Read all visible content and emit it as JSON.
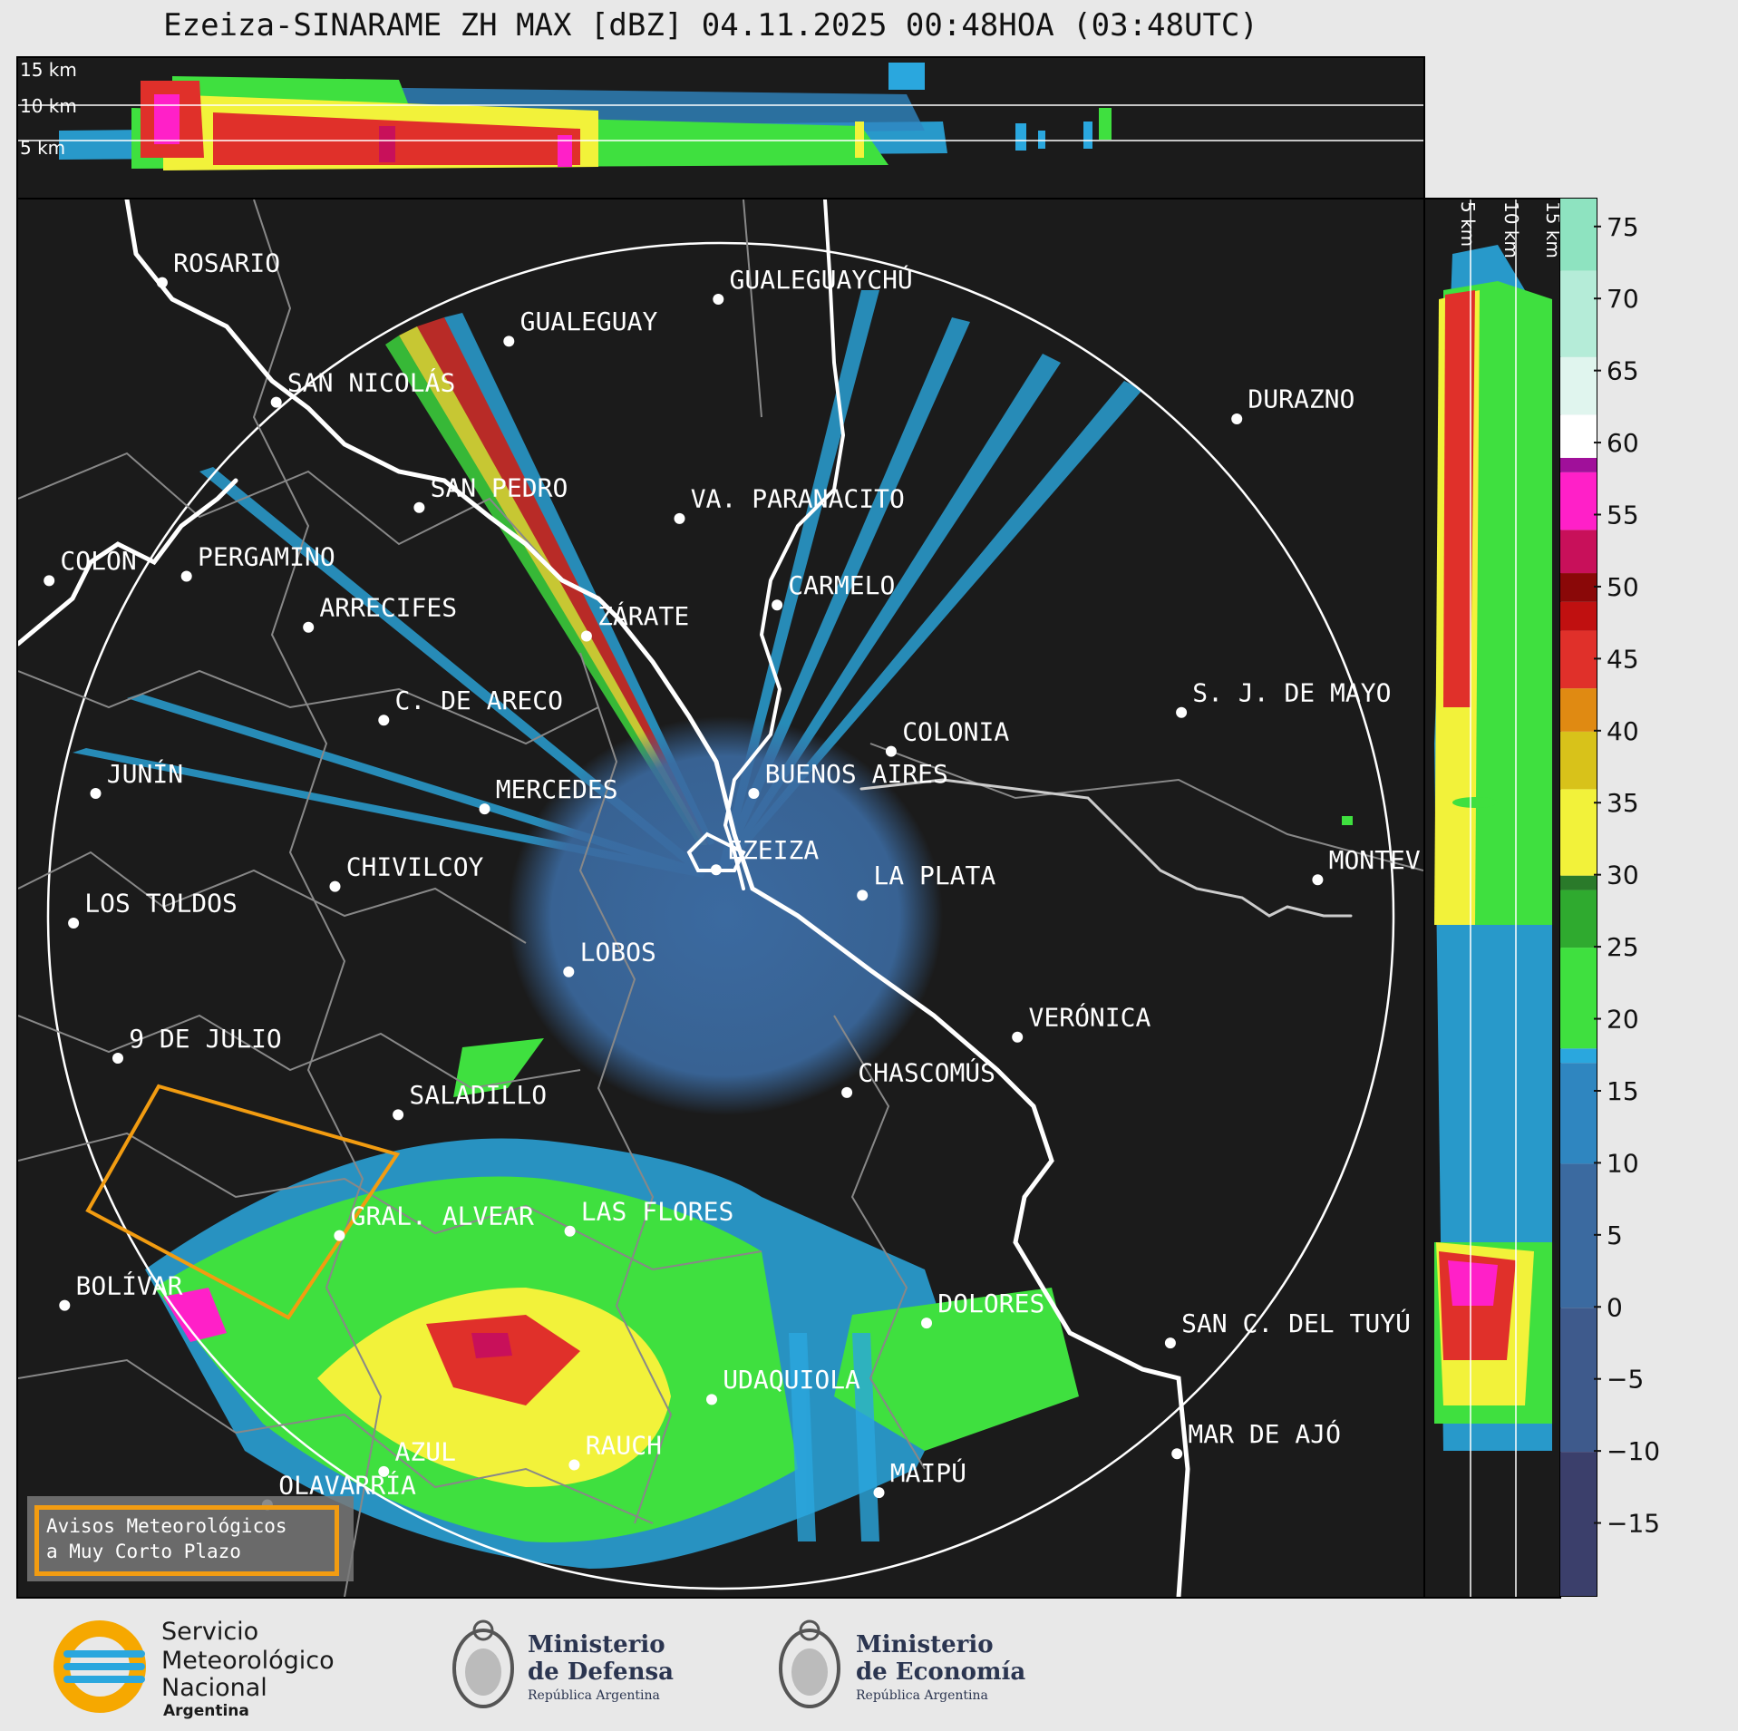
{
  "title": "Ezeiza-SINARAME ZH MAX [dBZ] 04.11.2025 00:48HOA (03:48UTC)",
  "top_profile": {
    "levels": [
      "15 km",
      "10 km",
      "5 km"
    ]
  },
  "side_profile": {
    "levels": [
      "5 km",
      "10 km",
      "15 km"
    ]
  },
  "cities": [
    {
      "name": "ROSARIO",
      "label": "ROSARIO"
    },
    {
      "name": "GUALEGUAYCHU",
      "label": "GUALEGUAYCHÚ"
    },
    {
      "name": "GUALEGUAY",
      "label": "GUALEGUAY"
    },
    {
      "name": "SAN-NICOLAS",
      "label": "SAN NICOLÁS"
    },
    {
      "name": "DURAZNO",
      "label": "DURAZNO"
    },
    {
      "name": "SAN-PEDRO",
      "label": "SAN PEDRO"
    },
    {
      "name": "VA-PARANACITO",
      "label": "VA. PARANACITO"
    },
    {
      "name": "COLON",
      "label": "COLON"
    },
    {
      "name": "PERGAMINO",
      "label": "PERGAMINO"
    },
    {
      "name": "CARMELO",
      "label": "CARMELO"
    },
    {
      "name": "ARRECIFES",
      "label": "ARRECIFES"
    },
    {
      "name": "ZARATE",
      "label": "ZÁRATE"
    },
    {
      "name": "C-DE-ARECO",
      "label": "C. DE ARECO"
    },
    {
      "name": "S-J-DE-MAYO",
      "label": "S. J. DE MAYO"
    },
    {
      "name": "COLONIA",
      "label": "COLONIA"
    },
    {
      "name": "JUNIN",
      "label": "JUNÍN"
    },
    {
      "name": "BUENOS-AIRES",
      "label": "BUENOS AIRES"
    },
    {
      "name": "MERCEDES",
      "label": "MERCEDES"
    },
    {
      "name": "EZEIZA",
      "label": "EZEIZA"
    },
    {
      "name": "MONTEVIDEO",
      "label": "MONTEV"
    },
    {
      "name": "CHIVILCOY",
      "label": "CHIVILCOY"
    },
    {
      "name": "LA-PLATA",
      "label": "LA PLATA"
    },
    {
      "name": "LOS-TOLDOS",
      "label": "LOS TOLDOS"
    },
    {
      "name": "LOBOS",
      "label": "LOBOS"
    },
    {
      "name": "VERONICA",
      "label": "VERÓNICA"
    },
    {
      "name": "9-DE-JULIO",
      "label": "9 DE JULIO"
    },
    {
      "name": "CHASCOMUS",
      "label": "CHASCOMÚS"
    },
    {
      "name": "SALADILLO",
      "label": "SALADILLO"
    },
    {
      "name": "GRAL-ALVEAR",
      "label": "GRAL. ALVEAR"
    },
    {
      "name": "LAS-FLORES",
      "label": "LAS FLORES"
    },
    {
      "name": "BOLIVAR",
      "label": "BOLÍVAR"
    },
    {
      "name": "DOLORES",
      "label": "DOLORES"
    },
    {
      "name": "SAN-C-DEL-TUYU",
      "label": "SAN C. DEL TUYÚ"
    },
    {
      "name": "UDAQUIOLA",
      "label": "UDAQUIOLA"
    },
    {
      "name": "MAR-DE-AJO",
      "label": "MAR DE AJÓ"
    },
    {
      "name": "AZUL",
      "label": "AZUL"
    },
    {
      "name": "RAUCH",
      "label": "RAUCH"
    },
    {
      "name": "OLAVARRIA",
      "label": "OLAVARRÍA"
    },
    {
      "name": "MAIPU",
      "label": "MAIPÚ"
    }
  ],
  "colorbar": {
    "unit": "dBZ",
    "ticks": [
      "75",
      "70",
      "65",
      "60",
      "55",
      "50",
      "45",
      "40",
      "35",
      "30",
      "25",
      "20",
      "15",
      "10",
      "5",
      "0",
      "−5",
      "−10",
      "−15"
    ],
    "range": [
      -20,
      77
    ],
    "colors": {
      "-20": "#3b3f6b",
      "-10": "#3e5a8c",
      "0": "#3b6aa0",
      "10": "#2f86c0",
      "17": "#2aa7de",
      "18": "#3fe03f",
      "25": "#2faa2f",
      "29": "#2a7a2a",
      "30": "#f2f23a",
      "36": "#d8c21a",
      "40": "#e08a12",
      "43": "#e0302a",
      "47": "#c01010",
      "49": "#8a0808",
      "51": "#c8105a",
      "54": "#ff20c8",
      "58": "#a0109a",
      "59": "#ffffff",
      "62": "#e0f5ee",
      "66": "#b5ecd8",
      "72": "#8ee3c0",
      "77": "#7cdcb4"
    }
  },
  "warning_box": {
    "line1": "Avisos Meteorológicos",
    "line2": "a Muy Corto Plazo",
    "color": "#f29c11"
  },
  "footer": {
    "smn": [
      "Servicio",
      "Meteorológico",
      "Nacional",
      "Argentina"
    ],
    "defensa": [
      "Ministerio",
      "de Defensa",
      "República Argentina"
    ],
    "economia": [
      "Ministerio",
      "de Economía",
      "República Argentina"
    ]
  }
}
